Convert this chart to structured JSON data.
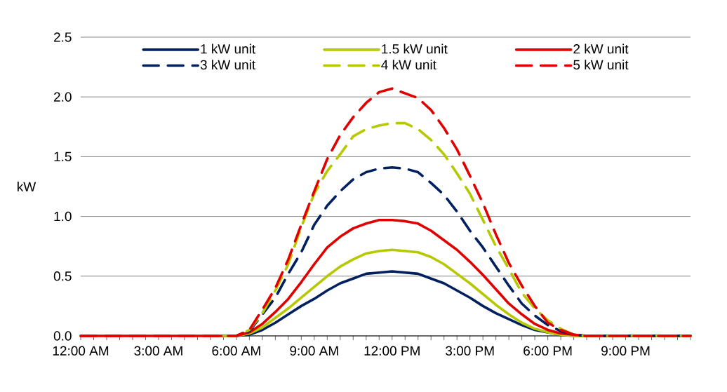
{
  "chart_data": {
    "type": "line",
    "ylabel": "kW",
    "x": [
      0,
      0.5,
      1,
      1.5,
      2,
      2.5,
      3,
      3.5,
      4,
      4.5,
      5,
      5.5,
      6,
      6.5,
      7,
      7.5,
      8,
      8.5,
      9,
      9.5,
      10,
      10.5,
      11,
      11.5,
      12,
      12.5,
      13,
      13.5,
      14,
      14.5,
      15,
      15.5,
      16,
      16.5,
      17,
      17.5,
      18,
      18.5,
      19,
      19.5,
      20,
      20.5,
      21,
      21.5,
      22,
      22.5,
      23,
      23.5
    ],
    "xlim": [
      0,
      23.5
    ],
    "xticks": [
      {
        "value": 0,
        "label": "12:00 AM"
      },
      {
        "value": 0.5,
        "label": null
      },
      {
        "value": 1,
        "label": null
      },
      {
        "value": 1.5,
        "label": null
      },
      {
        "value": 2,
        "label": null
      },
      {
        "value": 2.5,
        "label": null
      },
      {
        "value": 3,
        "label": "3:00 AM"
      },
      {
        "value": 3.5,
        "label": null
      },
      {
        "value": 4,
        "label": null
      },
      {
        "value": 4.5,
        "label": null
      },
      {
        "value": 5,
        "label": null
      },
      {
        "value": 5.5,
        "label": null
      },
      {
        "value": 6,
        "label": "6:00 AM"
      },
      {
        "value": 6.5,
        "label": null
      },
      {
        "value": 7,
        "label": null
      },
      {
        "value": 7.5,
        "label": null
      },
      {
        "value": 8,
        "label": null
      },
      {
        "value": 8.5,
        "label": null
      },
      {
        "value": 9,
        "label": "9:00 AM"
      },
      {
        "value": 9.5,
        "label": null
      },
      {
        "value": 10,
        "label": null
      },
      {
        "value": 10.5,
        "label": null
      },
      {
        "value": 11,
        "label": null
      },
      {
        "value": 11.5,
        "label": null
      },
      {
        "value": 12,
        "label": "12:00 PM"
      },
      {
        "value": 12.5,
        "label": null
      },
      {
        "value": 13,
        "label": null
      },
      {
        "value": 13.5,
        "label": null
      },
      {
        "value": 14,
        "label": null
      },
      {
        "value": 14.5,
        "label": null
      },
      {
        "value": 15,
        "label": "3:00 PM"
      },
      {
        "value": 15.5,
        "label": null
      },
      {
        "value": 16,
        "label": null
      },
      {
        "value": 16.5,
        "label": null
      },
      {
        "value": 17,
        "label": null
      },
      {
        "value": 17.5,
        "label": null
      },
      {
        "value": 18,
        "label": "6:00 PM"
      },
      {
        "value": 18.5,
        "label": null
      },
      {
        "value": 19,
        "label": null
      },
      {
        "value": 19.5,
        "label": null
      },
      {
        "value": 20,
        "label": null
      },
      {
        "value": 20.5,
        "label": null
      },
      {
        "value": 21,
        "label": "9:00 PM"
      },
      {
        "value": 21.5,
        "label": null
      },
      {
        "value": 22,
        "label": null
      },
      {
        "value": 22.5,
        "label": null
      },
      {
        "value": 23,
        "label": null
      },
      {
        "value": 23.5,
        "label": null
      }
    ],
    "ylim": [
      0,
      2.5
    ],
    "yticks": [
      {
        "value": 0,
        "label": "0.0"
      },
      {
        "value": 0.5,
        "label": "0.5"
      },
      {
        "value": 1,
        "label": "1.0"
      },
      {
        "value": 1.5,
        "label": "1.5"
      },
      {
        "value": 2,
        "label": "2.0"
      },
      {
        "value": 2.5,
        "label": "2.5"
      }
    ],
    "grid": "y",
    "legend": "top",
    "marker": "none",
    "series": [
      {
        "name": "1 kW unit",
        "color": "#002060",
        "line_style": "solid",
        "values": [
          null,
          null,
          null,
          null,
          null,
          null,
          null,
          null,
          null,
          null,
          null,
          0,
          0,
          0.01,
          0.05,
          0.11,
          0.18,
          0.25,
          0.31,
          0.38,
          0.44,
          0.48,
          0.52,
          0.53,
          0.54,
          0.53,
          0.52,
          0.48,
          0.44,
          0.38,
          0.32,
          0.25,
          0.19,
          0.14,
          0.09,
          0.05,
          0.03,
          0.01,
          0,
          0,
          null,
          null,
          null,
          null,
          null,
          null,
          null,
          null
        ]
      },
      {
        "name": "1.5 kW unit",
        "color": "#b5c800",
        "line_style": "solid",
        "values": [
          null,
          null,
          null,
          null,
          null,
          null,
          null,
          null,
          null,
          null,
          null,
          0,
          0,
          0.02,
          0.07,
          0.15,
          0.23,
          0.32,
          0.41,
          0.5,
          0.58,
          0.64,
          0.69,
          0.71,
          0.72,
          0.71,
          0.7,
          0.66,
          0.6,
          0.52,
          0.44,
          0.35,
          0.26,
          0.18,
          0.11,
          0.06,
          0.03,
          0.01,
          0,
          0,
          0,
          0,
          0,
          0,
          0,
          0,
          0,
          0
        ]
      },
      {
        "name": "2 kW unit",
        "color": "#e00000",
        "line_style": "solid",
        "values": [
          0,
          0,
          0,
          0,
          0,
          0,
          0,
          0,
          0,
          0,
          0,
          0,
          0,
          0.03,
          0.1,
          0.2,
          0.31,
          0.45,
          0.6,
          0.74,
          0.83,
          0.9,
          0.94,
          0.97,
          0.97,
          0.96,
          0.94,
          0.88,
          0.8,
          0.72,
          0.62,
          0.51,
          0.39,
          0.27,
          0.18,
          0.1,
          0.05,
          0.02,
          0.01,
          0,
          0,
          0,
          0,
          0,
          0,
          0,
          0,
          0
        ]
      },
      {
        "name": "3 kW unit",
        "color": "#002060",
        "line_style": "dashed",
        "values": [
          null,
          null,
          null,
          null,
          null,
          null,
          null,
          null,
          null,
          null,
          null,
          0,
          0,
          0.04,
          0.18,
          0.32,
          0.52,
          0.7,
          0.93,
          1.09,
          1.21,
          1.31,
          1.37,
          1.4,
          1.41,
          1.4,
          1.37,
          1.28,
          1.18,
          1.04,
          0.88,
          0.74,
          0.58,
          0.42,
          0.27,
          0.17,
          0.09,
          0.04,
          0.01,
          0,
          0,
          0,
          0,
          0,
          0,
          0,
          0,
          0
        ]
      },
      {
        "name": "4 kW unit",
        "color": "#b5c800",
        "line_style": "dashed",
        "values": [
          null,
          null,
          null,
          null,
          null,
          null,
          null,
          null,
          null,
          null,
          null,
          0,
          0,
          0.05,
          0.19,
          0.38,
          0.6,
          0.91,
          1.19,
          1.38,
          1.52,
          1.67,
          1.73,
          1.76,
          1.78,
          1.78,
          1.73,
          1.64,
          1.52,
          1.36,
          1.19,
          0.97,
          0.75,
          0.56,
          0.36,
          0.23,
          0.13,
          0.06,
          0.01,
          0,
          0,
          0,
          0,
          0,
          0,
          0,
          0,
          0
        ]
      },
      {
        "name": "5 kW unit",
        "color": "#e00000",
        "line_style": "dashed",
        "values": [
          0,
          0,
          0,
          0,
          0,
          0,
          0,
          0,
          0,
          0,
          0,
          0,
          0,
          0.05,
          0.22,
          0.4,
          0.64,
          0.93,
          1.21,
          1.48,
          1.68,
          1.83,
          1.95,
          2.04,
          2.07,
          2.03,
          1.99,
          1.89,
          1.74,
          1.56,
          1.34,
          1.11,
          0.85,
          0.61,
          0.42,
          0.25,
          0.11,
          0.05,
          0.01,
          0,
          0,
          0,
          0,
          0,
          0,
          0,
          0,
          0
        ]
      }
    ]
  }
}
